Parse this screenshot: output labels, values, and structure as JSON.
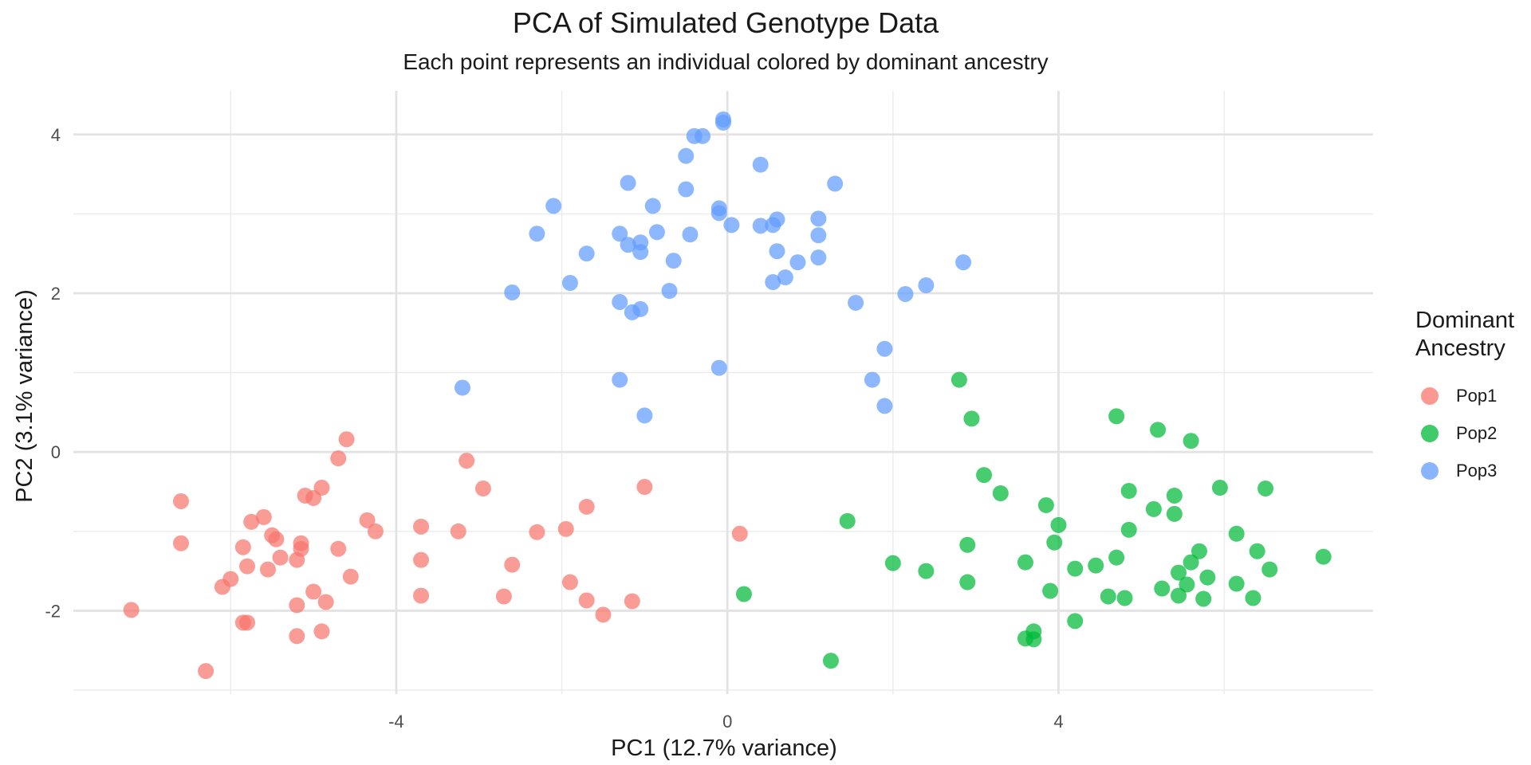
{
  "chart_data": {
    "type": "scatter",
    "title": "PCA of Simulated Genotype Data",
    "subtitle": "Each point represents an individual colored by dominant ancestry",
    "xlabel": "PC1 (12.7% variance)",
    "ylabel": "PC2 (3.1% variance)",
    "xlim": [
      -7.9,
      7.8
    ],
    "ylim": [
      -3.05,
      4.55
    ],
    "x_ticks": [
      -4,
      0,
      4
    ],
    "x_tick_labels": [
      "-4",
      "0",
      "4"
    ],
    "y_ticks": [
      -2,
      0,
      2,
      4
    ],
    "y_tick_labels": [
      "-2",
      "0",
      "2",
      "4"
    ],
    "x_minor_grid": [
      -6,
      -2,
      2,
      6
    ],
    "y_minor_grid": [
      -3,
      -1,
      1,
      3
    ],
    "grid": true,
    "legend_title": "Dominant Ancestry",
    "legend_position": "right",
    "series": [
      {
        "name": "Pop1",
        "color": "#F8766D",
        "points": [
          [
            -4.6,
            0.16
          ],
          [
            -4.7,
            -0.08
          ],
          [
            -3.15,
            -0.11
          ],
          [
            -2.95,
            -0.46
          ],
          [
            -4.9,
            -0.45
          ],
          [
            -5.1,
            -0.55
          ],
          [
            -5.0,
            -0.58
          ],
          [
            -1.0,
            -0.44
          ],
          [
            -6.6,
            -0.62
          ],
          [
            -5.6,
            -0.82
          ],
          [
            -5.75,
            -0.88
          ],
          [
            -4.35,
            -0.86
          ],
          [
            -3.7,
            -0.94
          ],
          [
            -4.25,
            -1.0
          ],
          [
            -3.25,
            -1.0
          ],
          [
            -1.95,
            -0.97
          ],
          [
            -2.3,
            -1.01
          ],
          [
            -1.7,
            -0.69
          ],
          [
            0.15,
            -1.03
          ],
          [
            -6.6,
            -1.15
          ],
          [
            -5.45,
            -1.1
          ],
          [
            -5.5,
            -1.05
          ],
          [
            -5.15,
            -1.15
          ],
          [
            -5.15,
            -1.22
          ],
          [
            -5.85,
            -1.2
          ],
          [
            -4.7,
            -1.22
          ],
          [
            -5.4,
            -1.33
          ],
          [
            -5.2,
            -1.36
          ],
          [
            -3.7,
            -1.36
          ],
          [
            -5.55,
            -1.48
          ],
          [
            -5.8,
            -1.44
          ],
          [
            -6.0,
            -1.6
          ],
          [
            -6.1,
            -1.7
          ],
          [
            -2.6,
            -1.42
          ],
          [
            -4.55,
            -1.57
          ],
          [
            -1.9,
            -1.64
          ],
          [
            -2.7,
            -1.82
          ],
          [
            -3.7,
            -1.81
          ],
          [
            -1.7,
            -1.87
          ],
          [
            -1.15,
            -1.88
          ],
          [
            -5.0,
            -1.76
          ],
          [
            -4.85,
            -1.89
          ],
          [
            -5.2,
            -1.93
          ],
          [
            -7.2,
            -1.99
          ],
          [
            -1.5,
            -2.05
          ],
          [
            -5.85,
            -2.15
          ],
          [
            -5.8,
            -2.15
          ],
          [
            -5.2,
            -2.32
          ],
          [
            -4.9,
            -2.26
          ],
          [
            -6.3,
            -2.76
          ]
        ]
      },
      {
        "name": "Pop2",
        "color": "#00BA38",
        "points": [
          [
            2.8,
            0.91
          ],
          [
            2.95,
            0.42
          ],
          [
            4.7,
            0.45
          ],
          [
            5.2,
            0.28
          ],
          [
            5.6,
            0.14
          ],
          [
            3.1,
            -0.29
          ],
          [
            3.3,
            -0.52
          ],
          [
            4.85,
            -0.49
          ],
          [
            5.4,
            -0.55
          ],
          [
            5.95,
            -0.45
          ],
          [
            6.5,
            -0.46
          ],
          [
            3.85,
            -0.67
          ],
          [
            5.15,
            -0.72
          ],
          [
            5.4,
            -0.78
          ],
          [
            1.45,
            -0.87
          ],
          [
            4.0,
            -0.92
          ],
          [
            4.85,
            -0.98
          ],
          [
            6.15,
            -1.03
          ],
          [
            2.9,
            -1.17
          ],
          [
            3.95,
            -1.14
          ],
          [
            5.7,
            -1.25
          ],
          [
            6.4,
            -1.25
          ],
          [
            2.0,
            -1.4
          ],
          [
            2.4,
            -1.5
          ],
          [
            3.6,
            -1.39
          ],
          [
            4.2,
            -1.47
          ],
          [
            4.45,
            -1.43
          ],
          [
            4.7,
            -1.33
          ],
          [
            5.6,
            -1.39
          ],
          [
            5.45,
            -1.52
          ],
          [
            6.55,
            -1.48
          ],
          [
            7.2,
            -1.32
          ],
          [
            2.9,
            -1.64
          ],
          [
            3.9,
            -1.75
          ],
          [
            5.25,
            -1.72
          ],
          [
            5.55,
            -1.67
          ],
          [
            5.8,
            -1.58
          ],
          [
            6.15,
            -1.66
          ],
          [
            0.2,
            -1.79
          ],
          [
            4.6,
            -1.82
          ],
          [
            4.8,
            -1.84
          ],
          [
            5.45,
            -1.81
          ],
          [
            5.75,
            -1.85
          ],
          [
            6.35,
            -1.84
          ],
          [
            4.2,
            -2.13
          ],
          [
            3.7,
            -2.26
          ],
          [
            3.6,
            -2.35
          ],
          [
            3.7,
            -2.36
          ],
          [
            1.25,
            -2.63
          ]
        ]
      },
      {
        "name": "Pop3",
        "color": "#619CFF",
        "points": [
          [
            -0.05,
            4.19
          ],
          [
            -0.05,
            4.15
          ],
          [
            -0.4,
            3.98
          ],
          [
            -0.3,
            3.98
          ],
          [
            -0.5,
            3.73
          ],
          [
            0.4,
            3.62
          ],
          [
            -1.2,
            3.39
          ],
          [
            1.3,
            3.38
          ],
          [
            -0.5,
            3.31
          ],
          [
            -2.1,
            3.1
          ],
          [
            -0.9,
            3.1
          ],
          [
            -0.1,
            3.07
          ],
          [
            -0.1,
            3.01
          ],
          [
            1.1,
            2.94
          ],
          [
            0.6,
            2.93
          ],
          [
            0.05,
            2.86
          ],
          [
            0.4,
            2.85
          ],
          [
            0.55,
            2.86
          ],
          [
            -2.3,
            2.75
          ],
          [
            -1.3,
            2.75
          ],
          [
            -0.85,
            2.77
          ],
          [
            -0.45,
            2.74
          ],
          [
            1.1,
            2.73
          ],
          [
            -1.05,
            2.64
          ],
          [
            -1.2,
            2.61
          ],
          [
            -1.05,
            2.52
          ],
          [
            0.6,
            2.53
          ],
          [
            -1.7,
            2.5
          ],
          [
            -0.65,
            2.41
          ],
          [
            0.85,
            2.39
          ],
          [
            1.1,
            2.45
          ],
          [
            2.85,
            2.39
          ],
          [
            -1.9,
            2.13
          ],
          [
            0.55,
            2.14
          ],
          [
            0.7,
            2.2
          ],
          [
            2.4,
            2.1
          ],
          [
            -2.6,
            2.01
          ],
          [
            -0.7,
            2.03
          ],
          [
            2.15,
            1.99
          ],
          [
            -1.3,
            1.89
          ],
          [
            1.55,
            1.88
          ],
          [
            -1.05,
            1.8
          ],
          [
            -1.15,
            1.76
          ],
          [
            1.9,
            1.3
          ],
          [
            -0.1,
            1.06
          ],
          [
            -1.3,
            0.91
          ],
          [
            1.75,
            0.91
          ],
          [
            -3.2,
            0.81
          ],
          [
            1.9,
            0.58
          ],
          [
            -1.0,
            0.46
          ]
        ]
      }
    ]
  }
}
